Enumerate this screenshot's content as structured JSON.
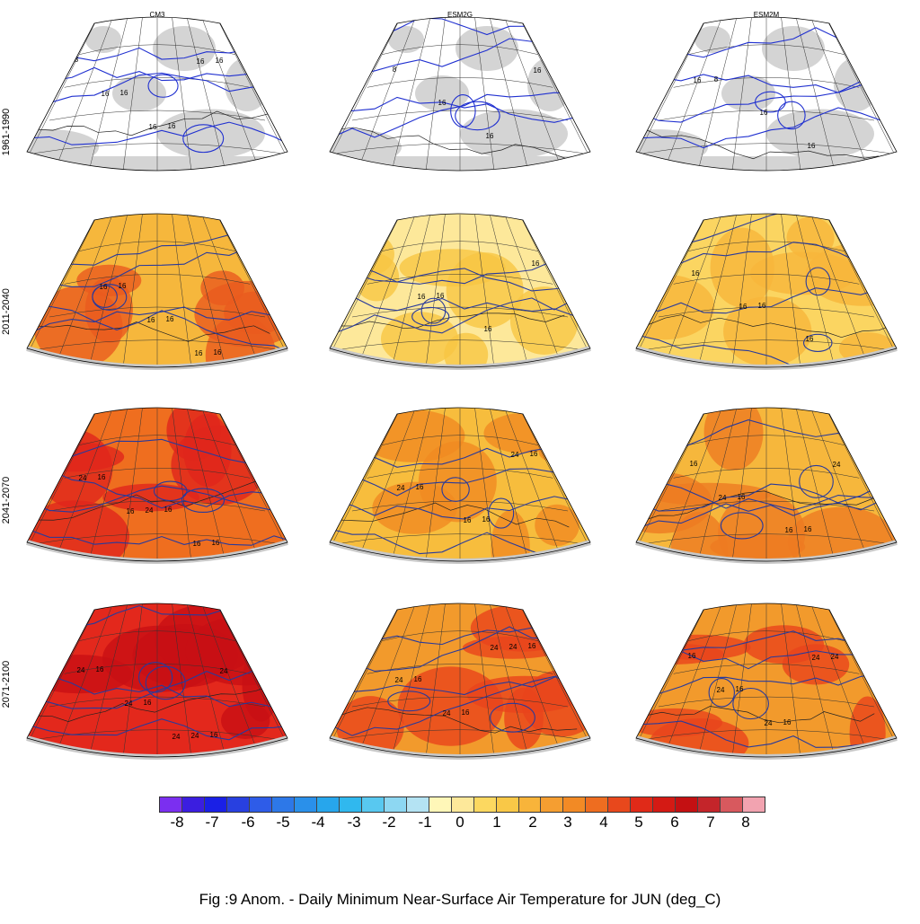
{
  "figure": {
    "caption": "Fig :9  Anom.  - Daily Minimum Near-Surface Air Temperature for JUN (deg_C)",
    "columns": [
      "CM3",
      "ESM2G",
      "ESM2M"
    ],
    "rows": [
      "1961-1990",
      "2011-2040",
      "2041-2070",
      "2071-2100"
    ]
  },
  "panels": [
    {
      "row": 0,
      "col": 0,
      "fill": "#ffffff",
      "warm": "#ffffff",
      "contour_labels": [
        "8",
        "16",
        "16",
        "16",
        "16",
        "16",
        "16"
      ]
    },
    {
      "row": 0,
      "col": 1,
      "fill": "#ffffff",
      "warm": "#ffffff",
      "contour_labels": [
        "8",
        "16",
        "16",
        "16"
      ]
    },
    {
      "row": 0,
      "col": 2,
      "fill": "#ffffff",
      "warm": "#ffffff",
      "contour_labels": [
        "8",
        "16",
        "16",
        "16"
      ]
    },
    {
      "row": 1,
      "col": 0,
      "fill": "#f6b73c",
      "warm": "#ea5a1e",
      "contour_labels": [
        "16",
        "16",
        "16",
        "16",
        "16",
        "16"
      ]
    },
    {
      "row": 1,
      "col": 1,
      "fill": "#fde89a",
      "warm": "#f8c542",
      "contour_labels": [
        "16",
        "16",
        "16",
        "16"
      ]
    },
    {
      "row": 1,
      "col": 2,
      "fill": "#fbd561",
      "warm": "#f7b53b",
      "contour_labels": [
        "16",
        "16",
        "16",
        "16"
      ]
    },
    {
      "row": 2,
      "col": 0,
      "fill": "#ef6e1f",
      "warm": "#e0261c",
      "contour_labels": [
        "16",
        "16",
        "16",
        "24",
        "16",
        "24",
        "16"
      ]
    },
    {
      "row": 2,
      "col": 1,
      "fill": "#f7bd3d",
      "warm": "#f08a22",
      "contour_labels": [
        "16",
        "16",
        "16",
        "16",
        "24",
        "24"
      ]
    },
    {
      "row": 2,
      "col": 2,
      "fill": "#f6b73c",
      "warm": "#ee7a22",
      "contour_labels": [
        "16",
        "16",
        "16",
        "16",
        "24",
        "24"
      ]
    },
    {
      "row": 3,
      "col": 0,
      "fill": "#e3281c",
      "warm": "#c80f14",
      "contour_labels": [
        "16",
        "16",
        "16",
        "24",
        "24",
        "24",
        "24",
        "24"
      ]
    },
    {
      "row": 3,
      "col": 1,
      "fill": "#f29a2c",
      "warm": "#e8441c",
      "contour_labels": [
        "16",
        "16",
        "16",
        "24",
        "24",
        "24",
        "24"
      ]
    },
    {
      "row": 3,
      "col": 2,
      "fill": "#f29a2c",
      "warm": "#e8441c",
      "contour_labels": [
        "16",
        "16",
        "16",
        "24",
        "24",
        "24",
        "24"
      ]
    }
  ],
  "colorbar": {
    "colors": [
      "#7b2ff0",
      "#3b1ee0",
      "#1a20e6",
      "#2840e0",
      "#2e5ce8",
      "#2d78e8",
      "#2a90ea",
      "#27a6ec",
      "#30b8ee",
      "#58c8f0",
      "#8dd7f2",
      "#b4e3f3",
      "#fff7b8",
      "#fde89a",
      "#fcd860",
      "#f9c847",
      "#f8b43a",
      "#f59e31",
      "#f28a25",
      "#ee6d20",
      "#e8481c",
      "#e02a18",
      "#d41a14",
      "#c41012",
      "#c4252a",
      "#d8595e",
      "#f2a3b0"
    ],
    "labels": [
      "-8",
      "-7",
      "-6",
      "-5",
      "-4",
      "-3",
      "-2",
      "-1",
      "0",
      "1",
      "2",
      "3",
      "4",
      "5",
      "6",
      "7",
      "8"
    ]
  }
}
